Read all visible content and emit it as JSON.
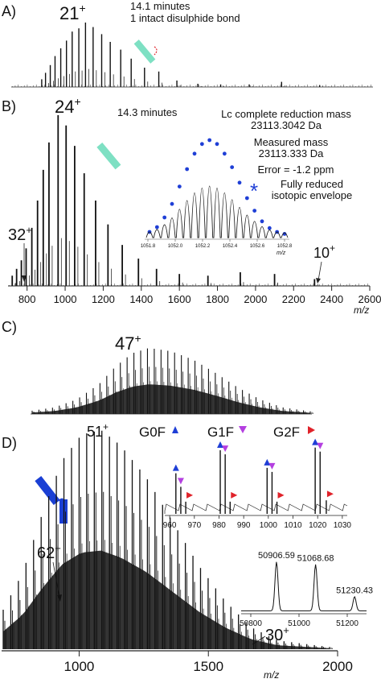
{
  "chart_data": [
    {
      "panel": "A",
      "type": "line",
      "label": "A)",
      "charge_label": "21",
      "charge_sign": "+",
      "annotations": [
        "14.1 minutes",
        "1 intact disulphide bond"
      ],
      "xlim": [
        700,
        2600
      ],
      "peaks": [
        {
          "x": 860,
          "y": 0.12
        },
        {
          "x": 880,
          "y": 0.22
        },
        {
          "x": 905,
          "y": 0.34
        },
        {
          "x": 930,
          "y": 0.48
        },
        {
          "x": 960,
          "y": 0.6
        },
        {
          "x": 990,
          "y": 0.72
        },
        {
          "x": 1020,
          "y": 0.86
        },
        {
          "x": 1055,
          "y": 0.91
        },
        {
          "x": 1090,
          "y": 1.0
        },
        {
          "x": 1130,
          "y": 0.93
        },
        {
          "x": 1175,
          "y": 0.82
        },
        {
          "x": 1220,
          "y": 0.7
        },
        {
          "x": 1275,
          "y": 0.58
        },
        {
          "x": 1330,
          "y": 0.44
        },
        {
          "x": 1400,
          "y": 0.3
        },
        {
          "x": 1475,
          "y": 0.24
        },
        {
          "x": 1570,
          "y": 0.1
        },
        {
          "x": 1680,
          "y": 0.05
        },
        {
          "x": 1800,
          "y": 0.04
        },
        {
          "x": 1950,
          "y": 0.04
        },
        {
          "x": 2120,
          "y": 0.08
        },
        {
          "x": 2320,
          "y": 0.03
        }
      ]
    },
    {
      "panel": "B",
      "type": "line",
      "label": "B)",
      "charge_labels": [
        {
          "n": "24",
          "sign": "+"
        },
        {
          "n": "32",
          "sign": "+"
        },
        {
          "n": "10",
          "sign": "+"
        }
      ],
      "annotations": [
        "14.3 minutes",
        "Lc complete reduction mass",
        "23113.3042 Da",
        "Measured mass",
        "23113.333 Da",
        "Error = -1.2 ppm",
        "Fully reduced",
        "isotopic envelope"
      ],
      "xlabel": "m/z",
      "xlim": [
        700,
        2600
      ],
      "xticks": [
        800,
        1000,
        1200,
        1400,
        1600,
        1800,
        2000,
        2200,
        2400,
        2600
      ],
      "peaks": [
        {
          "x": 722,
          "y": 0.06
        },
        {
          "x": 745,
          "y": 0.1
        },
        {
          "x": 770,
          "y": 0.15
        },
        {
          "x": 795,
          "y": 0.22
        },
        {
          "x": 825,
          "y": 0.34
        },
        {
          "x": 855,
          "y": 0.5
        },
        {
          "x": 885,
          "y": 0.68
        },
        {
          "x": 915,
          "y": 0.84
        },
        {
          "x": 963,
          "y": 1.0
        },
        {
          "x": 1005,
          "y": 0.94
        },
        {
          "x": 1050,
          "y": 0.82
        },
        {
          "x": 1100,
          "y": 0.66
        },
        {
          "x": 1160,
          "y": 0.5
        },
        {
          "x": 1225,
          "y": 0.36
        },
        {
          "x": 1300,
          "y": 0.24
        },
        {
          "x": 1385,
          "y": 0.16
        },
        {
          "x": 1480,
          "y": 0.1
        },
        {
          "x": 1600,
          "y": 0.07
        },
        {
          "x": 1750,
          "y": 0.06
        },
        {
          "x": 1920,
          "y": 0.08
        },
        {
          "x": 2100,
          "y": 0.07
        },
        {
          "x": 2310,
          "y": 0.04
        }
      ],
      "inset": {
        "xticks": [
          "1051.8",
          "1052.0",
          "1052.2",
          "1052.4",
          "1052.6",
          "1052.8"
        ],
        "xlabel": "m/z",
        "isotopes": [
          0.05,
          0.1,
          0.2,
          0.34,
          0.52,
          0.7,
          0.86,
          0.96,
          1.0,
          0.96,
          0.86,
          0.72,
          0.56,
          0.4,
          0.27,
          0.16,
          0.09,
          0.05,
          0.03
        ]
      }
    },
    {
      "panel": "C",
      "type": "line",
      "label": "C)",
      "charge_label": "47",
      "charge_sign": "+",
      "xlim": [
        700,
        2000
      ],
      "envelope": [
        {
          "x": 0.0,
          "y": 0.05
        },
        {
          "x": 0.08,
          "y": 0.1
        },
        {
          "x": 0.16,
          "y": 0.22
        },
        {
          "x": 0.24,
          "y": 0.45
        },
        {
          "x": 0.3,
          "y": 0.72
        },
        {
          "x": 0.36,
          "y": 0.92
        },
        {
          "x": 0.42,
          "y": 1.0
        },
        {
          "x": 0.5,
          "y": 0.95
        },
        {
          "x": 0.58,
          "y": 0.82
        },
        {
          "x": 0.66,
          "y": 0.62
        },
        {
          "x": 0.74,
          "y": 0.4
        },
        {
          "x": 0.82,
          "y": 0.22
        },
        {
          "x": 0.9,
          "y": 0.1
        },
        {
          "x": 1.0,
          "y": 0.04
        }
      ]
    },
    {
      "panel": "D",
      "type": "line",
      "label": "D)",
      "charge_labels": [
        {
          "n": "51",
          "sign": "+"
        },
        {
          "n": "62",
          "sign": "+"
        },
        {
          "n": "30",
          "sign": "+"
        }
      ],
      "glycoform_legend": [
        {
          "name": "G0F",
          "color": "#1f3fd6",
          "marker": "triangle-up"
        },
        {
          "name": "G1F",
          "color": "#b43fe0",
          "marker": "triangle-down"
        },
        {
          "name": "G2F",
          "color": "#e0222a",
          "marker": "triangle-right"
        }
      ],
      "xlabel": "m/z",
      "xlim": [
        700,
        2000
      ],
      "xticks": [
        1000,
        1500,
        2000
      ],
      "envelope": [
        {
          "x": 0.0,
          "y": 0.18
        },
        {
          "x": 0.06,
          "y": 0.35
        },
        {
          "x": 0.12,
          "y": 0.62
        },
        {
          "x": 0.18,
          "y": 0.86
        },
        {
          "x": 0.24,
          "y": 0.98
        },
        {
          "x": 0.3,
          "y": 1.0
        },
        {
          "x": 0.36,
          "y": 0.93
        },
        {
          "x": 0.44,
          "y": 0.78
        },
        {
          "x": 0.52,
          "y": 0.58
        },
        {
          "x": 0.6,
          "y": 0.38
        },
        {
          "x": 0.68,
          "y": 0.22
        },
        {
          "x": 0.76,
          "y": 0.1
        },
        {
          "x": 0.84,
          "y": 0.04
        },
        {
          "x": 1.0,
          "y": 0.01
        }
      ],
      "inset_top": {
        "xticks": [
          960,
          970,
          980,
          990,
          1000,
          1010,
          1020,
          1030
        ],
        "peaks": [
          {
            "x": 962.5,
            "y": 0.6,
            "mark": "G0F"
          },
          {
            "x": 964.5,
            "y": 0.4,
            "mark": "G1F"
          },
          {
            "x": 966.5,
            "y": 0.18,
            "mark": "G2F"
          },
          {
            "x": 980.5,
            "y": 0.94,
            "mark": "G0F"
          },
          {
            "x": 982.5,
            "y": 0.88,
            "mark": "G1F"
          },
          {
            "x": 984.5,
            "y": 0.18,
            "mark": "G2F"
          },
          {
            "x": 999.5,
            "y": 0.68,
            "mark": "G0F"
          },
          {
            "x": 1001.5,
            "y": 0.62,
            "mark": "G1F"
          },
          {
            "x": 1003.5,
            "y": 0.18,
            "mark": "G2F"
          },
          {
            "x": 1019.0,
            "y": 0.98,
            "mark": "G0F"
          },
          {
            "x": 1021.0,
            "y": 0.92,
            "mark": "G1F"
          },
          {
            "x": 1023.5,
            "y": 0.2,
            "mark": "G2F"
          }
        ]
      },
      "inset_bottom": {
        "xticks": [
          50800,
          51000,
          51200
        ],
        "xlim": [
          50760,
          51280
        ],
        "peaks": [
          {
            "x": 50906.59,
            "y": 0.76,
            "label": "50906.59"
          },
          {
            "x": 51068.68,
            "y": 0.72,
            "label": "51068.68"
          },
          {
            "x": 51230.43,
            "y": 0.22,
            "label": "51230.43"
          }
        ]
      }
    }
  ]
}
